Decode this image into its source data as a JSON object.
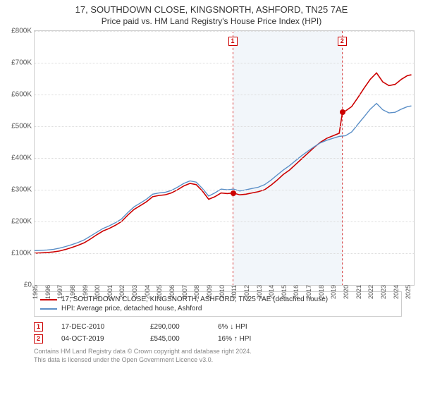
{
  "title": "17, SOUTHDOWN CLOSE, KINGSNORTH, ASHFORD, TN25 7AE",
  "subtitle": "Price paid vs. HM Land Registry's House Price Index (HPI)",
  "chart": {
    "type": "line",
    "ylim": [
      0,
      800000
    ],
    "ytick_step": 100000,
    "yticks": [
      "£0",
      "£100K",
      "£200K",
      "£300K",
      "£400K",
      "£500K",
      "£600K",
      "£700K",
      "£800K"
    ],
    "xlim": [
      1995,
      2025.5
    ],
    "xticks": [
      1995,
      1996,
      1997,
      1998,
      1999,
      2000,
      2001,
      2002,
      2003,
      2004,
      2005,
      2006,
      2007,
      2008,
      2009,
      2010,
      2011,
      2012,
      2013,
      2014,
      2015,
      2016,
      2017,
      2018,
      2019,
      2020,
      2021,
      2022,
      2023,
      2024,
      2025
    ],
    "background_color": "#ffffff",
    "grid_color": "#dddddd",
    "band": {
      "start": 2010.96,
      "end": 2019.76,
      "color": "#f2f6fa"
    },
    "series": [
      {
        "name": "property",
        "label": "17, SOUTHDOWN CLOSE, KINGSNORTH, ASHFORD, TN25 7AE (detached house)",
        "color": "#cc0000",
        "line_width": 1.6,
        "data": [
          [
            1995.0,
            100000
          ],
          [
            1995.5,
            101000
          ],
          [
            1996.0,
            102000
          ],
          [
            1996.5,
            104000
          ],
          [
            1997.0,
            107000
          ],
          [
            1997.5,
            112000
          ],
          [
            1998.0,
            118000
          ],
          [
            1998.5,
            125000
          ],
          [
            1999.0,
            133000
          ],
          [
            1999.5,
            145000
          ],
          [
            2000.0,
            158000
          ],
          [
            2000.5,
            170000
          ],
          [
            2001.0,
            178000
          ],
          [
            2001.5,
            188000
          ],
          [
            2002.0,
            200000
          ],
          [
            2002.5,
            220000
          ],
          [
            2003.0,
            238000
          ],
          [
            2003.5,
            250000
          ],
          [
            2004.0,
            262000
          ],
          [
            2004.5,
            278000
          ],
          [
            2005.0,
            282000
          ],
          [
            2005.5,
            284000
          ],
          [
            2006.0,
            290000
          ],
          [
            2006.5,
            300000
          ],
          [
            2007.0,
            312000
          ],
          [
            2007.5,
            320000
          ],
          [
            2008.0,
            316000
          ],
          [
            2008.5,
            296000
          ],
          [
            2009.0,
            270000
          ],
          [
            2009.5,
            278000
          ],
          [
            2010.0,
            290000
          ],
          [
            2010.5,
            288000
          ],
          [
            2010.96,
            290000
          ],
          [
            2011.5,
            284000
          ],
          [
            2012.0,
            286000
          ],
          [
            2012.5,
            290000
          ],
          [
            2013.0,
            294000
          ],
          [
            2013.5,
            300000
          ],
          [
            2014.0,
            314000
          ],
          [
            2014.5,
            330000
          ],
          [
            2015.0,
            348000
          ],
          [
            2015.5,
            362000
          ],
          [
            2016.0,
            380000
          ],
          [
            2016.5,
            398000
          ],
          [
            2017.0,
            416000
          ],
          [
            2017.5,
            434000
          ],
          [
            2018.0,
            450000
          ],
          [
            2018.5,
            462000
          ],
          [
            2019.0,
            470000
          ],
          [
            2019.5,
            478000
          ],
          [
            2019.76,
            545000
          ],
          [
            2020.0,
            548000
          ],
          [
            2020.5,
            562000
          ],
          [
            2021.0,
            590000
          ],
          [
            2021.5,
            620000
          ],
          [
            2022.0,
            648000
          ],
          [
            2022.5,
            668000
          ],
          [
            2023.0,
            640000
          ],
          [
            2023.5,
            628000
          ],
          [
            2024.0,
            632000
          ],
          [
            2024.5,
            648000
          ],
          [
            2025.0,
            660000
          ],
          [
            2025.3,
            662000
          ]
        ]
      },
      {
        "name": "hpi",
        "label": "HPI: Average price, detached house, Ashford",
        "color": "#5b8fc7",
        "line_width": 1.4,
        "data": [
          [
            1995.0,
            108000
          ],
          [
            1995.5,
            109000
          ],
          [
            1996.0,
            110000
          ],
          [
            1996.5,
            112000
          ],
          [
            1997.0,
            116000
          ],
          [
            1997.5,
            121000
          ],
          [
            1998.0,
            127000
          ],
          [
            1998.5,
            134000
          ],
          [
            1999.0,
            142000
          ],
          [
            1999.5,
            154000
          ],
          [
            2000.0,
            166000
          ],
          [
            2000.5,
            178000
          ],
          [
            2001.0,
            186000
          ],
          [
            2001.5,
            196000
          ],
          [
            2002.0,
            208000
          ],
          [
            2002.5,
            228000
          ],
          [
            2003.0,
            246000
          ],
          [
            2003.5,
            258000
          ],
          [
            2004.0,
            270000
          ],
          [
            2004.5,
            286000
          ],
          [
            2005.0,
            290000
          ],
          [
            2005.5,
            292000
          ],
          [
            2006.0,
            298000
          ],
          [
            2006.5,
            308000
          ],
          [
            2007.0,
            320000
          ],
          [
            2007.5,
            328000
          ],
          [
            2008.0,
            324000
          ],
          [
            2008.5,
            304000
          ],
          [
            2009.0,
            280000
          ],
          [
            2009.5,
            290000
          ],
          [
            2010.0,
            302000
          ],
          [
            2010.5,
            300000
          ],
          [
            2011.0,
            302000
          ],
          [
            2011.5,
            296000
          ],
          [
            2012.0,
            300000
          ],
          [
            2012.5,
            304000
          ],
          [
            2013.0,
            308000
          ],
          [
            2013.5,
            316000
          ],
          [
            2014.0,
            330000
          ],
          [
            2014.5,
            346000
          ],
          [
            2015.0,
            362000
          ],
          [
            2015.5,
            376000
          ],
          [
            2016.0,
            392000
          ],
          [
            2016.5,
            408000
          ],
          [
            2017.0,
            422000
          ],
          [
            2017.5,
            436000
          ],
          [
            2018.0,
            448000
          ],
          [
            2018.5,
            456000
          ],
          [
            2019.0,
            462000
          ],
          [
            2019.5,
            468000
          ],
          [
            2020.0,
            470000
          ],
          [
            2020.5,
            482000
          ],
          [
            2021.0,
            506000
          ],
          [
            2021.5,
            530000
          ],
          [
            2022.0,
            554000
          ],
          [
            2022.5,
            572000
          ],
          [
            2023.0,
            552000
          ],
          [
            2023.5,
            542000
          ],
          [
            2024.0,
            544000
          ],
          [
            2024.5,
            554000
          ],
          [
            2025.0,
            562000
          ],
          [
            2025.3,
            564000
          ]
        ]
      }
    ],
    "sale_markers": [
      {
        "n": "1",
        "year": 2010.96,
        "price": 290000,
        "color": "#cc0000"
      },
      {
        "n": "2",
        "year": 2019.76,
        "price": 545000,
        "color": "#cc0000"
      }
    ]
  },
  "legend": {
    "series1": "17, SOUTHDOWN CLOSE, KINGSNORTH, ASHFORD, TN25 7AE (detached house)",
    "series2": "HPI: Average price, detached house, Ashford",
    "color1": "#cc0000",
    "color2": "#5b8fc7"
  },
  "sales": [
    {
      "n": "1",
      "date": "17-DEC-2010",
      "price": "£290,000",
      "hpi": "6% ↓ HPI",
      "color": "#cc0000"
    },
    {
      "n": "2",
      "date": "04-OCT-2019",
      "price": "£545,000",
      "hpi": "16% ↑ HPI",
      "color": "#cc0000"
    }
  ],
  "footnote": {
    "line1": "Contains HM Land Registry data © Crown copyright and database right 2024.",
    "line2": "This data is licensed under the Open Government Licence v3.0."
  }
}
